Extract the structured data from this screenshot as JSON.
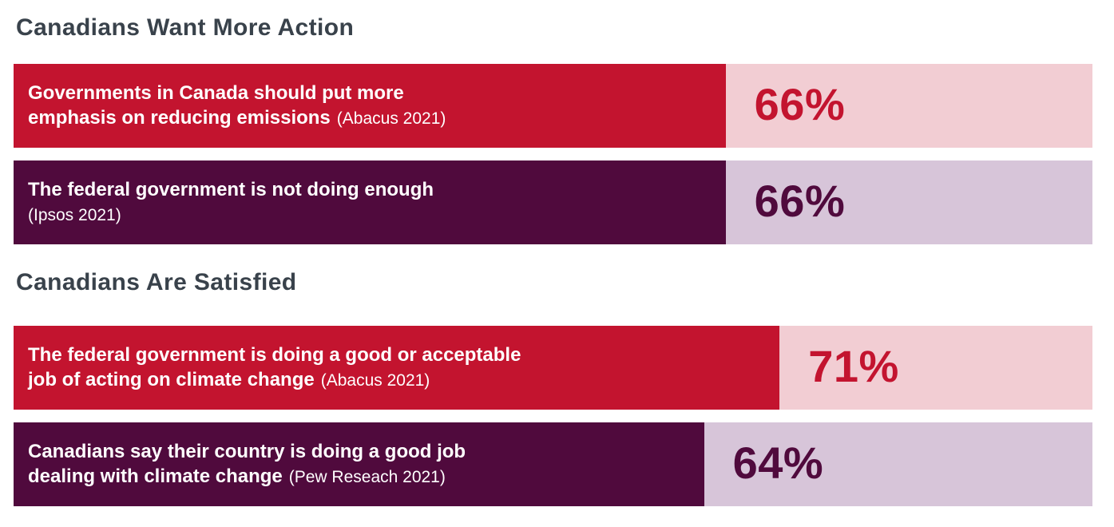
{
  "colors": {
    "red_fill": "#c3142f",
    "red_track": "#f2cdd3",
    "purple_fill": "#500a3d",
    "purple_track": "#d7c5d9",
    "heading_text": "#39424b",
    "bar_text": "#ffffff",
    "background": "#ffffff"
  },
  "sections": [
    {
      "heading": "Canadians Want More Action",
      "bars": [
        {
          "line1": "Governments in Canada should put more",
          "line2": "emphasis on reducing emissions",
          "source": "(Abacus 2021)",
          "percent": 66,
          "percent_label": "66%",
          "theme": "red"
        },
        {
          "line1": "The federal government is not doing enough",
          "line2": "",
          "source": "(Ipsos 2021)",
          "percent": 66,
          "percent_label": "66%",
          "theme": "purple"
        }
      ]
    },
    {
      "heading": "Canadians Are Satisfied",
      "bars": [
        {
          "line1": "The federal government is doing a good or acceptable",
          "line2": "job of acting on climate change",
          "source": "(Abacus 2021)",
          "percent": 71,
          "percent_label": "71%",
          "theme": "red"
        },
        {
          "line1": "Canadians say their country is doing a good job",
          "line2": "dealing with climate change",
          "source": "(Pew Reseach 2021)",
          "percent": 64,
          "percent_label": "64%",
          "theme": "purple"
        }
      ]
    }
  ],
  "chart_data": {
    "type": "bar",
    "orientation": "horizontal",
    "unit": "%",
    "value_axis_range": [
      0,
      100
    ],
    "grid": false,
    "legend": false,
    "groups": [
      {
        "title": "Canadians Want More Action",
        "items": [
          {
            "label": "Governments in Canada should put more emphasis on reducing emissions",
            "source": "Abacus 2021",
            "value": 66,
            "fill_color": "#c3142f",
            "track_color": "#f2cdd3"
          },
          {
            "label": "The federal government is not doing enough",
            "source": "Ipsos 2021",
            "value": 66,
            "fill_color": "#500a3d",
            "track_color": "#d7c5d9"
          }
        ]
      },
      {
        "title": "Canadians Are Satisfied",
        "items": [
          {
            "label": "The federal government is doing a good or acceptable job of acting on climate change",
            "source": "Abacus 2021",
            "value": 71,
            "fill_color": "#c3142f",
            "track_color": "#f2cdd3"
          },
          {
            "label": "Canadians say their country is doing a good job dealing with climate change",
            "source": "Pew Reseach 2021",
            "value": 64,
            "fill_color": "#500a3d",
            "track_color": "#d7c5d9"
          }
        ]
      }
    ]
  }
}
